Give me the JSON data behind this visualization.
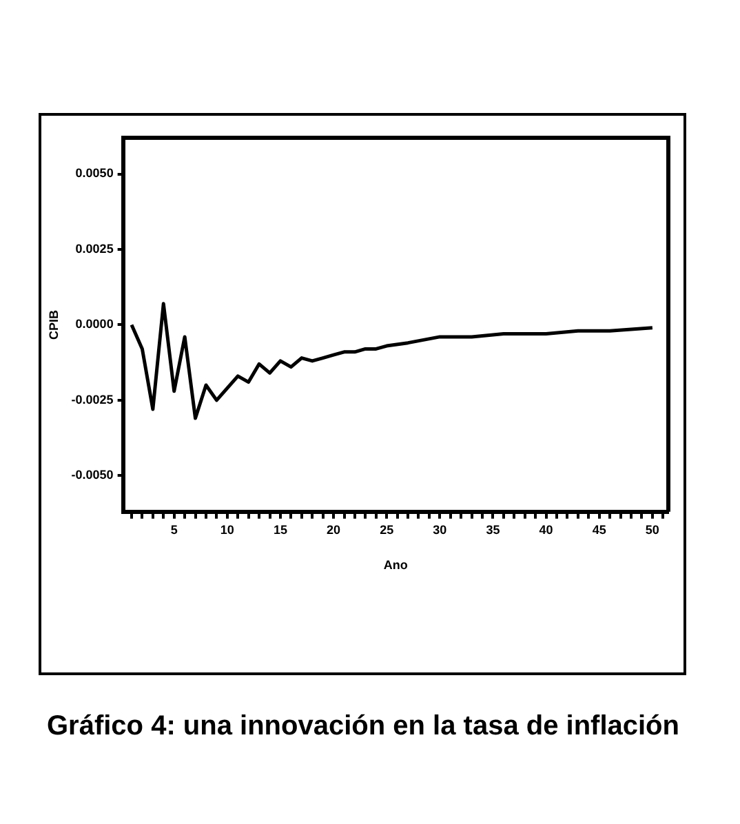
{
  "chart_data": {
    "type": "line",
    "title": "Gráfico 4: una innovación en la tasa de inflación",
    "xlabel": "Ano",
    "ylabel": "CPIB",
    "x": [
      1,
      2,
      3,
      4,
      5,
      6,
      7,
      8,
      9,
      10,
      11,
      12,
      13,
      14,
      15,
      16,
      17,
      18,
      19,
      20,
      21,
      22,
      23,
      24,
      25,
      27,
      30,
      33,
      36,
      40,
      43,
      46,
      50
    ],
    "series": [
      {
        "color": "#000000",
        "values": [
          0,
          -0.0008,
          -0.0028,
          0.0007,
          -0.0022,
          -0.0004,
          -0.0031,
          -0.002,
          -0.0025,
          -0.0021,
          -0.0017,
          -0.0019,
          -0.0013,
          -0.0016,
          -0.0012,
          -0.0014,
          -0.0011,
          -0.0012,
          -0.0011,
          -0.001,
          -0.0009,
          -0.0009,
          -0.0008,
          -0.0008,
          -0.0007,
          -0.0006,
          -0.0004,
          -0.0004,
          -0.0003,
          -0.0003,
          -0.0002,
          -0.0002,
          -0.0001
        ]
      }
    ],
    "xlim": [
      0.2,
      51.5
    ],
    "ylim": [
      -0.0062,
      0.0062
    ],
    "xticks": [
      {
        "value": 1,
        "label": null
      },
      {
        "value": 2,
        "label": null
      },
      {
        "value": 3,
        "label": null
      },
      {
        "value": 4,
        "label": null
      },
      5,
      {
        "value": 6,
        "label": null
      },
      {
        "value": 7,
        "label": null
      },
      {
        "value": 8,
        "label": null
      },
      {
        "value": 9,
        "label": null
      },
      10,
      {
        "value": 11,
        "label": null
      },
      {
        "value": 12,
        "label": null
      },
      {
        "value": 13,
        "label": null
      },
      {
        "value": 14,
        "label": null
      },
      15,
      {
        "value": 16,
        "label": null
      },
      {
        "value": 17,
        "label": null
      },
      {
        "value": 18,
        "label": null
      },
      {
        "value": 19,
        "label": null
      },
      20,
      {
        "value": 21,
        "label": null
      },
      {
        "value": 22,
        "label": null
      },
      {
        "value": 23,
        "label": null
      },
      {
        "value": 24,
        "label": null
      },
      25,
      {
        "value": 26,
        "label": null
      },
      {
        "value": 27,
        "label": null
      },
      {
        "value": 28,
        "label": null
      },
      {
        "value": 29,
        "label": null
      },
      30,
      {
        "value": 31,
        "label": null
      },
      {
        "value": 32,
        "label": null
      },
      {
        "value": 33,
        "label": null
      },
      {
        "value": 34,
        "label": null
      },
      35,
      {
        "value": 36,
        "label": null
      },
      {
        "value": 37,
        "label": null
      },
      {
        "value": 38,
        "label": null
      },
      {
        "value": 39,
        "label": null
      },
      40,
      {
        "value": 41,
        "label": null
      },
      {
        "value": 42,
        "label": null
      },
      {
        "value": 43,
        "label": null
      },
      {
        "value": 44,
        "label": null
      },
      45,
      {
        "value": 46,
        "label": null
      },
      {
        "value": 47,
        "label": null
      },
      {
        "value": 48,
        "label": null
      },
      {
        "value": 49,
        "label": null
      },
      50,
      {
        "value": 51,
        "label": null
      }
    ],
    "yticks": [
      {
        "value": -0.005,
        "label": "-0.0050"
      },
      {
        "value": -0.0025,
        "label": "-0.0025"
      },
      {
        "value": 0,
        "label": "0.0000"
      },
      {
        "value": 0.0025,
        "label": "0.0025"
      },
      {
        "value": 0.005,
        "label": "0.0050"
      }
    ],
    "grid": false,
    "legend": false,
    "marker": "none",
    "line_style": "solid"
  }
}
